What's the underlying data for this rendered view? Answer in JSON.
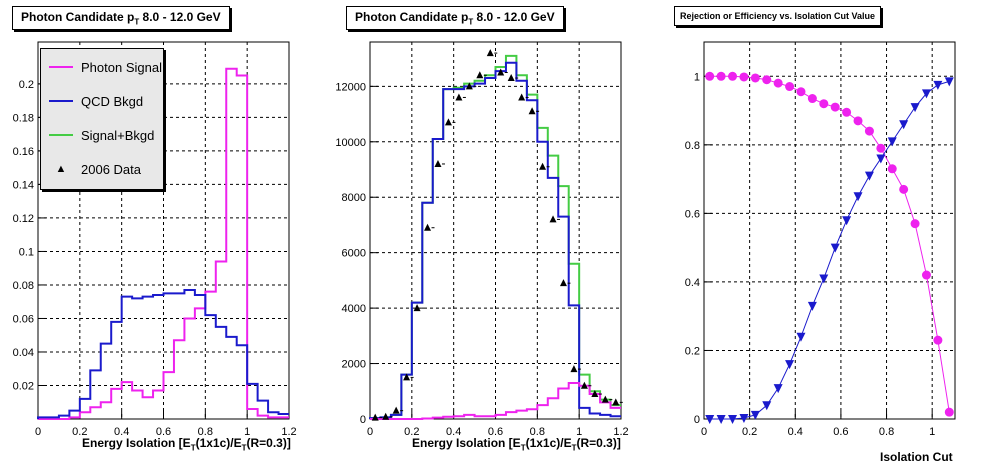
{
  "panels": [
    {
      "title": {
        "prefix": "Photon Candidate p",
        "sub": "T",
        "suffix": " 8.0 - 12.0 GeV"
      },
      "xlabel": {
        "a": "Energy Isolation [E",
        "s1": "T",
        "b": "(1x1c)/E",
        "s2": "T",
        "c": "(R=0.3)]"
      },
      "legend": [
        {
          "label": "Photon Signal",
          "color": "#ee22ee",
          "kind": "line"
        },
        {
          "label": "QCD Bkgd",
          "color": "#1a1acc",
          "kind": "line"
        },
        {
          "label": "Signal+Bkgd",
          "color": "#44cc44",
          "kind": "line"
        },
        {
          "label": "2006 Data",
          "color": "#000000",
          "kind": "marker"
        }
      ]
    },
    {
      "title": {
        "prefix": "Photon Candidate p",
        "sub": "T",
        "suffix": " 8.0 - 12.0 GeV"
      },
      "xlabel": {
        "a": "Energy Isolation [E",
        "s1": "T",
        "b": "(1x1c)/E",
        "s2": "T",
        "c": "(R=0.3)]"
      }
    },
    {
      "title": {
        "prefix": "Rejection or Efficiency vs. Isolation Cut Value",
        "sub": "",
        "suffix": ""
      },
      "xlabel_plain": "Isolation Cut"
    }
  ],
  "chart_data": [
    {
      "type": "line",
      "title": "Photon Candidate pT 8.0 - 12.0 GeV",
      "xlabel": "Energy Isolation [ET(1x1c)/ET(R=0.3)]",
      "xlim": [
        0,
        1.2
      ],
      "ylim": [
        0,
        0.225
      ],
      "xticks": [
        "0",
        "0.2",
        "0.4",
        "0.6",
        "0.8",
        "1",
        "1.2"
      ],
      "yticks": [
        "0.02",
        "0.04",
        "0.06",
        "0.08",
        "0.1",
        "0.12",
        "0.14",
        "0.16",
        "0.18",
        "0.2"
      ],
      "bin_edges": [
        0,
        0.05,
        0.1,
        0.15,
        0.2,
        0.25,
        0.3,
        0.35,
        0.4,
        0.45,
        0.5,
        0.55,
        0.6,
        0.65,
        0.7,
        0.75,
        0.8,
        0.85,
        0.9,
        0.95,
        1.0,
        1.05,
        1.1,
        1.15,
        1.2
      ],
      "series": [
        {
          "name": "Photon Signal",
          "color": "#ee22ee",
          "values": [
            0,
            0,
            0,
            0.001,
            0.004,
            0.007,
            0.01,
            0.018,
            0.022,
            0.017,
            0.013,
            0.017,
            0.028,
            0.047,
            0.06,
            0.066,
            0.076,
            0.094,
            0.209,
            0.205,
            0.006,
            0.002,
            0.001,
            0.001
          ]
        },
        {
          "name": "QCD Bkgd",
          "color": "#1a1acc",
          "values": [
            0.001,
            0.001,
            0.002,
            0.005,
            0.012,
            0.029,
            0.045,
            0.058,
            0.073,
            0.072,
            0.073,
            0.074,
            0.075,
            0.075,
            0.077,
            0.074,
            0.062,
            0.055,
            0.049,
            0.044,
            0.021,
            0.011,
            0.004,
            0.003
          ]
        },
        {
          "name": "Signal+Bkgd",
          "color": "#44cc44",
          "values": []
        },
        {
          "name": "2006 Data",
          "color": "#000000",
          "values": []
        }
      ]
    },
    {
      "type": "line",
      "title": "Photon Candidate pT 8.0 - 12.0 GeV",
      "xlabel": "Energy Isolation [ET(1x1c)/ET(R=0.3)]",
      "xlim": [
        0,
        1.2
      ],
      "ylim": [
        0,
        13600
      ],
      "xticks": [
        "0",
        "0.2",
        "0.4",
        "0.6",
        "0.8",
        "1",
        "1.2"
      ],
      "yticks": [
        "2000",
        "4000",
        "6000",
        "8000",
        "10000",
        "12000"
      ],
      "bin_edges": [
        0,
        0.05,
        0.1,
        0.15,
        0.2,
        0.25,
        0.3,
        0.35,
        0.4,
        0.45,
        0.5,
        0.55,
        0.6,
        0.65,
        0.7,
        0.75,
        0.8,
        0.85,
        0.9,
        0.95,
        1.0,
        1.05,
        1.1,
        1.15,
        1.2
      ],
      "series": [
        {
          "name": "Signal+Bkgd",
          "color": "#44cc44",
          "values": [
            30,
            60,
            150,
            1600,
            4200,
            7800,
            10100,
            11900,
            11950,
            12100,
            12200,
            12400,
            12700,
            13100,
            12400,
            11700,
            10500,
            9500,
            8400,
            5600,
            1600,
            1000,
            700,
            500
          ]
        },
        {
          "name": "QCD Bkgd",
          "color": "#1a1acc",
          "values": [
            30,
            60,
            150,
            1600,
            4200,
            7800,
            10100,
            11900,
            11900,
            12000,
            12100,
            12300,
            12550,
            12850,
            12200,
            11500,
            10000,
            8700,
            7300,
            4100,
            400,
            200,
            150,
            100
          ]
        },
        {
          "name": "Photon Signal",
          "color": "#ee22ee",
          "values": [
            0,
            0,
            0,
            0,
            0,
            20,
            50,
            80,
            100,
            150,
            100,
            100,
            150,
            250,
            300,
            350,
            500,
            750,
            1100,
            1300,
            1200,
            900,
            600,
            400
          ]
        },
        {
          "name": "2006 Data",
          "color": "#000000",
          "x": [
            0.025,
            0.075,
            0.125,
            0.175,
            0.225,
            0.275,
            0.325,
            0.375,
            0.425,
            0.475,
            0.525,
            0.575,
            0.625,
            0.675,
            0.725,
            0.775,
            0.825,
            0.875,
            0.925,
            0.975,
            1.025,
            1.075,
            1.125,
            1.175
          ],
          "values": [
            50,
            80,
            300,
            1500,
            4000,
            6900,
            9200,
            10700,
            11600,
            12000,
            12400,
            13200,
            12500,
            12300,
            11600,
            11100,
            9100,
            7200,
            4900,
            1800,
            1200,
            900,
            700,
            600
          ]
        }
      ]
    },
    {
      "type": "line",
      "title": "Rejection or Efficiency vs. Isolation Cut Value",
      "xlabel": "Isolation Cut",
      "xlim": [
        0,
        1.1
      ],
      "ylim": [
        0,
        1.1
      ],
      "xticks": [
        "0",
        "0.2",
        "0.4",
        "0.6",
        "0.8",
        "1"
      ],
      "yticks": [
        "0",
        "0.2",
        "0.4",
        "0.6",
        "0.8",
        "1"
      ],
      "series": [
        {
          "name": "",
          "color": "#ee22ee",
          "marker": "circle",
          "x": [
            0.025,
            0.075,
            0.125,
            0.175,
            0.225,
            0.275,
            0.325,
            0.375,
            0.425,
            0.475,
            0.525,
            0.575,
            0.625,
            0.675,
            0.725,
            0.775,
            0.825,
            0.875,
            0.925,
            0.975,
            1.025,
            1.075
          ],
          "values": [
            1.0,
            1.0,
            1.0,
            0.998,
            0.995,
            0.99,
            0.98,
            0.97,
            0.955,
            0.935,
            0.92,
            0.91,
            0.895,
            0.87,
            0.84,
            0.79,
            0.73,
            0.67,
            0.57,
            0.42,
            0.23,
            0.02
          ]
        },
        {
          "name": "",
          "color": "#1a1acc",
          "marker": "triangle-down",
          "x": [
            0.025,
            0.075,
            0.125,
            0.175,
            0.225,
            0.275,
            0.325,
            0.375,
            0.425,
            0.475,
            0.525,
            0.575,
            0.625,
            0.675,
            0.725,
            0.775,
            0.825,
            0.875,
            0.925,
            0.975,
            1.025,
            1.075
          ],
          "values": [
            0.0,
            0.0,
            0.0,
            0.003,
            0.012,
            0.04,
            0.09,
            0.16,
            0.24,
            0.33,
            0.41,
            0.5,
            0.58,
            0.65,
            0.71,
            0.76,
            0.81,
            0.86,
            0.91,
            0.95,
            0.975,
            0.985
          ]
        }
      ]
    }
  ]
}
